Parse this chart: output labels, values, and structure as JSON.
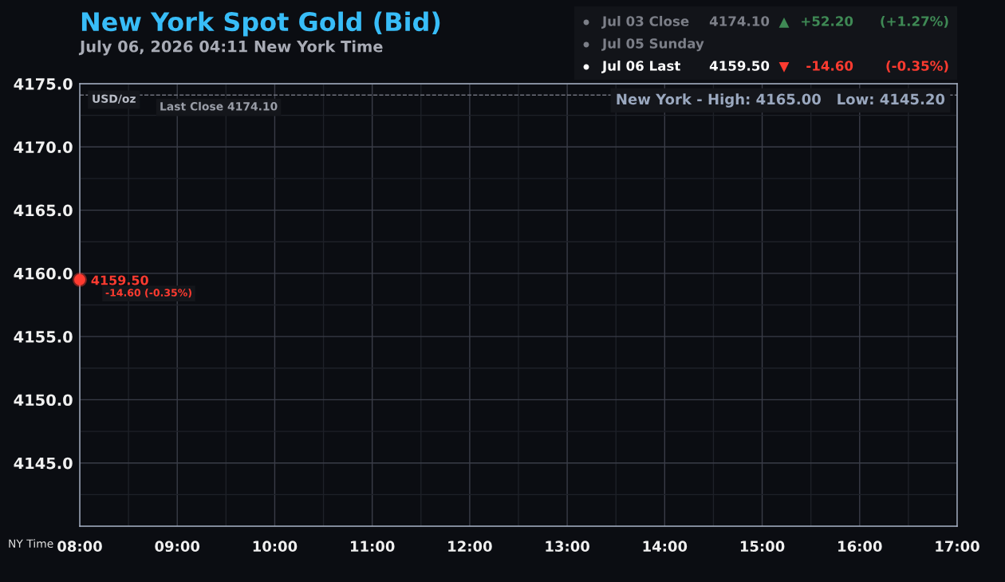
{
  "chart_data": {
    "type": "line",
    "title": "New York Spot Gold (Bid)",
    "subtitle": "July 06, 2026 04:11 New York Time",
    "xlabel": "NY Time",
    "x": [
      8
    ],
    "series": [
      {
        "color": "#ff3b30",
        "values": [
          4159.5
        ],
        "value_labels": [
          "4159.50"
        ]
      }
    ],
    "marker": "circle",
    "grid": true,
    "xlim": [
      8,
      17
    ],
    "xticks": [
      {
        "value": 8,
        "label": "08:00"
      },
      {
        "value": 8.5,
        "label": null
      },
      {
        "value": 9,
        "label": "09:00"
      },
      {
        "value": 9.5,
        "label": null
      },
      {
        "value": 10,
        "label": "10:00"
      },
      {
        "value": 10.5,
        "label": null
      },
      {
        "value": 11,
        "label": "11:00"
      },
      {
        "value": 11.5,
        "label": null
      },
      {
        "value": 12,
        "label": "12:00"
      },
      {
        "value": 12.5,
        "label": null
      },
      {
        "value": 13,
        "label": "13:00"
      },
      {
        "value": 13.5,
        "label": null
      },
      {
        "value": 14,
        "label": "14:00"
      },
      {
        "value": 14.5,
        "label": null
      },
      {
        "value": 15,
        "label": "15:00"
      },
      {
        "value": 15.5,
        "label": null
      },
      {
        "value": 16,
        "label": "16:00"
      },
      {
        "value": 16.5,
        "label": null
      },
      {
        "value": 17,
        "label": "17:00"
      }
    ],
    "ylim": [
      4140,
      4175
    ],
    "yticks": [
      {
        "value": 4142.5,
        "label": null
      },
      {
        "value": 4145,
        "label": "4145.0"
      },
      {
        "value": 4147.5,
        "label": null
      },
      {
        "value": 4150,
        "label": "4150.0"
      },
      {
        "value": 4152.5,
        "label": null
      },
      {
        "value": 4155,
        "label": "4155.0"
      },
      {
        "value": 4157.5,
        "label": null
      },
      {
        "value": 4160,
        "label": "4160.0"
      },
      {
        "value": 4162.5,
        "label": null
      },
      {
        "value": 4165,
        "label": "4165.0"
      },
      {
        "value": 4167.5,
        "label": null
      },
      {
        "value": 4170,
        "label": "4170.0"
      },
      {
        "value": 4172.5,
        "label": null
      },
      {
        "value": 4175,
        "label": "4175.0"
      }
    ],
    "ref_lines": [
      {
        "axis": "y",
        "value": 4174.1,
        "label": "Last Close 4174.10",
        "color": "#6e717b",
        "line_style": "dashed"
      }
    ],
    "annotations": [
      "USD/oz",
      "New York - High: 4165.00   Low: 4145.20",
      {
        "text": "-14.60 (-0.35%)",
        "x": 8,
        "y": 4159.5
      },
      "Jul 03 Close",
      "4174.10",
      "▲",
      "+52.20",
      "(+1.27%)",
      "Jul 05 Sunday",
      "Jul 06 Last",
      "4159.50",
      "▼",
      "-14.60",
      "(-0.35%)"
    ]
  }
}
